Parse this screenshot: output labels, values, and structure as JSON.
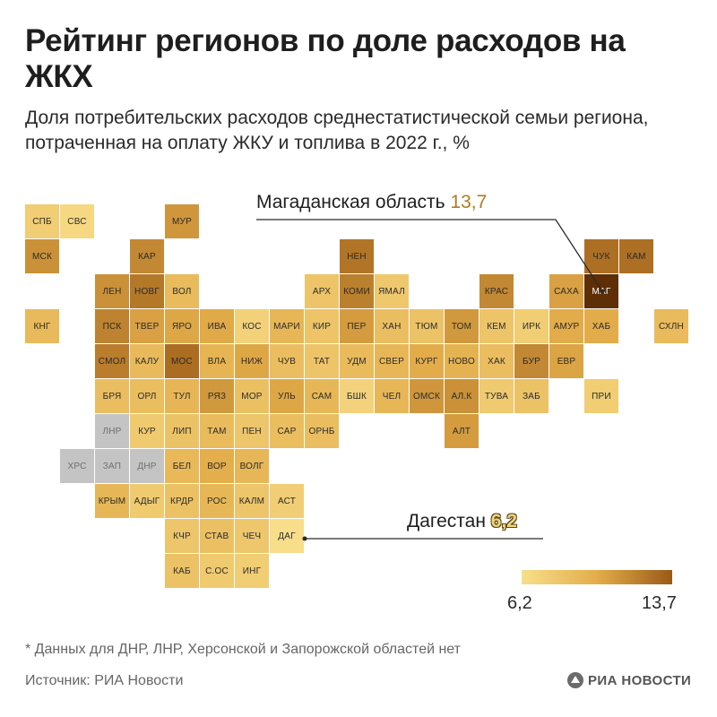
{
  "title": "Рейтинг регионов по доле расходов на ЖКХ",
  "subtitle": "Доля потребительских расходов среднестатистической семьи региона, потраченная на оплату ЖКУ и топлива в 2022 г., %",
  "callouts": {
    "max": {
      "label": "Магаданская область",
      "value": "13,7"
    },
    "min": {
      "label": "Дагестан",
      "value": "6,2"
    }
  },
  "legend": {
    "min": "6,2",
    "max": "13,7"
  },
  "footnote": "* Данных для ДНР, ЛНР, Херсонской и Запорожской областей нет",
  "source": "Источник: РИА Новости",
  "logo_text": "РИА НОВОСТИ",
  "colors": {
    "nodata": "#c4c4c4",
    "scale_low": "#f8de8a",
    "scale_mid": "#e3ad4a",
    "scale_high": "#9a5a16",
    "max_region": "#5e2e06"
  },
  "map_data": {
    "scale": [
      6.2,
      13.7
    ],
    "regions": [
      {
        "code": "СПБ",
        "col": 0,
        "row": 0,
        "v": 7.4
      },
      {
        "code": "СВС",
        "col": 1,
        "row": 0,
        "v": 6.6
      },
      {
        "code": "МУР",
        "col": 4,
        "row": 0,
        "v": 10.4
      },
      {
        "code": "МСК",
        "col": 0,
        "row": 1,
        "v": 10.6
      },
      {
        "code": "КАР",
        "col": 3,
        "row": 1,
        "v": 10.9
      },
      {
        "code": "НЕН",
        "col": 9,
        "row": 1,
        "v": 11.6
      },
      {
        "code": "ЧУК",
        "col": 16,
        "row": 1,
        "v": 11.8
      },
      {
        "code": "КАМ",
        "col": 17,
        "row": 1,
        "v": 11.8
      },
      {
        "code": "ЛЕН",
        "col": 2,
        "row": 2,
        "v": 10.6
      },
      {
        "code": "НОВГ",
        "col": 3,
        "row": 2,
        "v": 11.5
      },
      {
        "code": "ВОЛ",
        "col": 4,
        "row": 2,
        "v": 8.6
      },
      {
        "code": "АРХ",
        "col": 8,
        "row": 2,
        "v": 8.0
      },
      {
        "code": "КОМИ",
        "col": 9,
        "row": 2,
        "v": 11.2
      },
      {
        "code": "ЯМАЛ",
        "col": 10,
        "row": 2,
        "v": 7.7
      },
      {
        "code": "КРАС",
        "col": 13,
        "row": 2,
        "v": 10.9
      },
      {
        "code": "САХА",
        "col": 15,
        "row": 2,
        "v": 10.0
      },
      {
        "code": "МАГ",
        "col": 16,
        "row": 2,
        "v": 13.7
      },
      {
        "code": "КНГ",
        "col": 0,
        "row": 3,
        "v": 8.7
      },
      {
        "code": "ПСК",
        "col": 2,
        "row": 3,
        "v": 11.1
      },
      {
        "code": "ТВЕР",
        "col": 3,
        "row": 3,
        "v": 10.0
      },
      {
        "code": "ЯРО",
        "col": 4,
        "row": 3,
        "v": 9.8
      },
      {
        "code": "ИВА",
        "col": 5,
        "row": 3,
        "v": 9.7
      },
      {
        "code": "КОС",
        "col": 6,
        "row": 3,
        "v": 7.1
      },
      {
        "code": "МАРИ",
        "col": 7,
        "row": 3,
        "v": 8.9
      },
      {
        "code": "КИР",
        "col": 8,
        "row": 3,
        "v": 8.0
      },
      {
        "code": "ПЕР",
        "col": 9,
        "row": 3,
        "v": 10.2
      },
      {
        "code": "ХАН",
        "col": 10,
        "row": 3,
        "v": 8.4
      },
      {
        "code": "ТЮМ",
        "col": 11,
        "row": 3,
        "v": 8.1
      },
      {
        "code": "ТОМ",
        "col": 12,
        "row": 3,
        "v": 10.3
      },
      {
        "code": "КЕМ",
        "col": 13,
        "row": 3,
        "v": 8.0
      },
      {
        "code": "ИРК",
        "col": 14,
        "row": 3,
        "v": 7.4
      },
      {
        "code": "АМУР",
        "col": 15,
        "row": 3,
        "v": 9.6
      },
      {
        "code": "ХАБ",
        "col": 16,
        "row": 3,
        "v": 9.6
      },
      {
        "code": "СХЛН",
        "col": 18,
        "row": 3,
        "v": 8.6
      },
      {
        "code": "СМОЛ",
        "col": 2,
        "row": 4,
        "v": 11.3
      },
      {
        "code": "КАЛУ",
        "col": 3,
        "row": 4,
        "v": 8.7
      },
      {
        "code": "МОС",
        "col": 4,
        "row": 4,
        "v": 11.9
      },
      {
        "code": "ВЛА",
        "col": 5,
        "row": 4,
        "v": 9.1
      },
      {
        "code": "НИЖ",
        "col": 6,
        "row": 4,
        "v": 9.8
      },
      {
        "code": "ЧУВ",
        "col": 7,
        "row": 4,
        "v": 8.4
      },
      {
        "code": "ТАТ",
        "col": 8,
        "row": 4,
        "v": 8.0
      },
      {
        "code": "УДМ",
        "col": 9,
        "row": 4,
        "v": 8.6
      },
      {
        "code": "СВЕР",
        "col": 10,
        "row": 4,
        "v": 8.9
      },
      {
        "code": "КУРГ",
        "col": 11,
        "row": 4,
        "v": 9.6
      },
      {
        "code": "НОВО",
        "col": 12,
        "row": 4,
        "v": 9.2
      },
      {
        "code": "ХАК",
        "col": 13,
        "row": 4,
        "v": 8.4
      },
      {
        "code": "БУР",
        "col": 14,
        "row": 4,
        "v": 10.9
      },
      {
        "code": "ЕВР",
        "col": 15,
        "row": 4,
        "v": 9.9
      },
      {
        "code": "БРЯ",
        "col": 2,
        "row": 5,
        "v": 8.4
      },
      {
        "code": "ОРЛ",
        "col": 3,
        "row": 5,
        "v": 8.5
      },
      {
        "code": "ТУЛ",
        "col": 4,
        "row": 5,
        "v": 9.0
      },
      {
        "code": "РЯЗ",
        "col": 5,
        "row": 5,
        "v": 10.3
      },
      {
        "code": "МОР",
        "col": 6,
        "row": 5,
        "v": 8.3
      },
      {
        "code": "УЛЬ",
        "col": 7,
        "row": 5,
        "v": 9.8
      },
      {
        "code": "САМ",
        "col": 8,
        "row": 5,
        "v": 8.9
      },
      {
        "code": "БШК",
        "col": 9,
        "row": 5,
        "v": 7.0
      },
      {
        "code": "ЧЕЛ",
        "col": 10,
        "row": 5,
        "v": 8.9
      },
      {
        "code": "ОМСК",
        "col": 11,
        "row": 5,
        "v": 10.4
      },
      {
        "code": "АЛ.К",
        "col": 12,
        "row": 5,
        "v": 10.6
      },
      {
        "code": "ТУВА",
        "col": 13,
        "row": 5,
        "v": 7.6
      },
      {
        "code": "ЗАБ",
        "col": 14,
        "row": 5,
        "v": 8.1
      },
      {
        "code": "ПРИ",
        "col": 16,
        "row": 5,
        "v": 7.4
      },
      {
        "code": "ЛНР",
        "col": 2,
        "row": 6,
        "v": null
      },
      {
        "code": "КУР",
        "col": 3,
        "row": 6,
        "v": 7.6
      },
      {
        "code": "ЛИП",
        "col": 4,
        "row": 6,
        "v": 8.1
      },
      {
        "code": "ТАМ",
        "col": 5,
        "row": 6,
        "v": 8.6
      },
      {
        "code": "ПЕН",
        "col": 6,
        "row": 6,
        "v": 7.9
      },
      {
        "code": "САР",
        "col": 7,
        "row": 6,
        "v": 8.5
      },
      {
        "code": "ОРНБ",
        "col": 8,
        "row": 6,
        "v": 8.4
      },
      {
        "code": "АЛТ",
        "col": 12,
        "row": 6,
        "v": 10.2
      },
      {
        "code": "ХРС",
        "col": 1,
        "row": 7,
        "v": null
      },
      {
        "code": "ЗАП",
        "col": 2,
        "row": 7,
        "v": null
      },
      {
        "code": "ДНР",
        "col": 3,
        "row": 7,
        "v": null
      },
      {
        "code": "БЕЛ",
        "col": 4,
        "row": 7,
        "v": 8.8
      },
      {
        "code": "ВОР",
        "col": 5,
        "row": 7,
        "v": 9.5
      },
      {
        "code": "ВОЛГ",
        "col": 6,
        "row": 7,
        "v": 8.9
      },
      {
        "code": "КРЫМ",
        "col": 2,
        "row": 8,
        "v": 8.9
      },
      {
        "code": "АДЫГ",
        "col": 3,
        "row": 8,
        "v": 7.6
      },
      {
        "code": "КРДР",
        "col": 4,
        "row": 8,
        "v": 8.2
      },
      {
        "code": "РОС",
        "col": 5,
        "row": 8,
        "v": 8.9
      },
      {
        "code": "КАЛМ",
        "col": 6,
        "row": 8,
        "v": 7.9
      },
      {
        "code": "АСТ",
        "col": 7,
        "row": 8,
        "v": 7.3
      },
      {
        "code": "КЧР",
        "col": 4,
        "row": 9,
        "v": 7.9
      },
      {
        "code": "СТАВ",
        "col": 5,
        "row": 9,
        "v": 8.3
      },
      {
        "code": "ЧЕЧ",
        "col": 6,
        "row": 9,
        "v": 7.8
      },
      {
        "code": "ДАГ",
        "col": 7,
        "row": 9,
        "v": 6.2
      },
      {
        "code": "КАБ",
        "col": 4,
        "row": 10,
        "v": 8.1
      },
      {
        "code": "С.ОС",
        "col": 5,
        "row": 10,
        "v": 7.6
      },
      {
        "code": "ИНГ",
        "col": 6,
        "row": 10,
        "v": 7.4
      }
    ]
  }
}
